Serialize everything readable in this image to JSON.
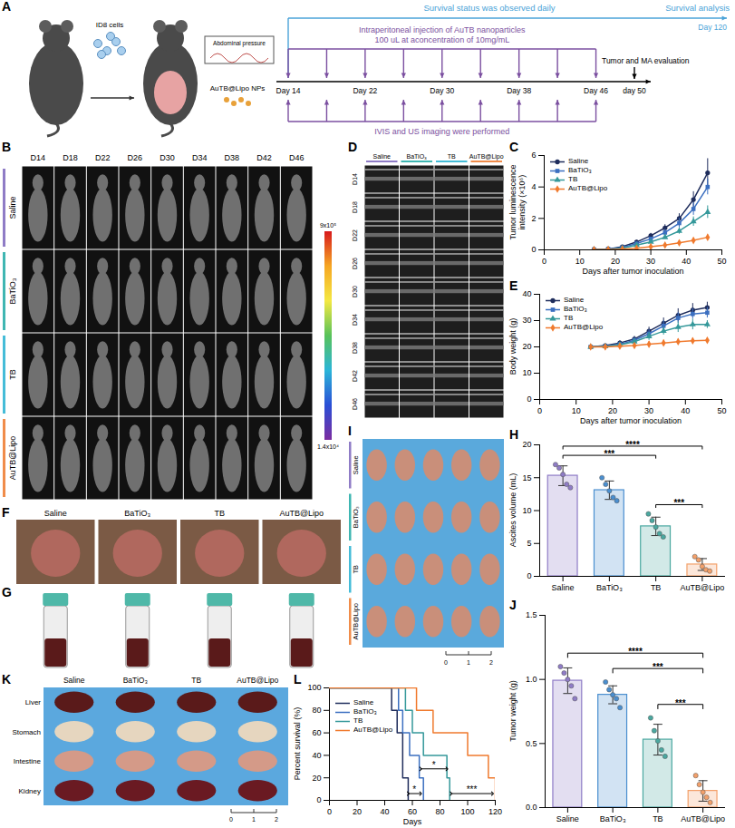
{
  "chart_data": [
    {
      "panel": "C",
      "type": "line",
      "y_label": "Tumor luminescence intensity (×10⁶)",
      "x_label": "Days after tumor inoculation",
      "x": [
        14,
        18,
        22,
        26,
        30,
        34,
        38,
        42,
        46
      ],
      "xlim": [
        0,
        50
      ],
      "xticks": [
        0,
        10,
        20,
        30,
        40,
        50
      ],
      "ylim": [
        0,
        6
      ],
      "yticks": [
        0,
        2,
        4,
        6
      ],
      "legend": "upper left",
      "series": [
        {
          "name": "Saline",
          "color": "#1f2d5c",
          "marker": "circle",
          "values": [
            0.02,
            0.05,
            0.2,
            0.5,
            0.9,
            1.4,
            2.0,
            3.2,
            4.9
          ],
          "errors": [
            0.01,
            0.02,
            0.05,
            0.1,
            0.15,
            0.2,
            0.3,
            0.5,
            0.9
          ]
        },
        {
          "name": "BaTiO₃",
          "color": "#3b6fc0",
          "marker": "square",
          "values": [
            0.02,
            0.05,
            0.15,
            0.4,
            0.7,
            1.1,
            1.7,
            2.6,
            4.0
          ],
          "errors": [
            0.01,
            0.02,
            0.05,
            0.08,
            0.1,
            0.2,
            0.3,
            0.4,
            0.5
          ]
        },
        {
          "name": "TB",
          "color": "#34989a",
          "marker": "triangle",
          "values": [
            0.01,
            0.03,
            0.1,
            0.3,
            0.5,
            0.8,
            1.2,
            1.8,
            2.4
          ],
          "errors": [
            0.01,
            0.01,
            0.03,
            0.05,
            0.1,
            0.1,
            0.2,
            0.3,
            0.4
          ]
        },
        {
          "name": "AuTB@Lipo",
          "color": "#f07a2e",
          "marker": "diamond",
          "values": [
            0.01,
            0.02,
            0.05,
            0.1,
            0.2,
            0.3,
            0.45,
            0.6,
            0.8
          ],
          "errors": [
            0.01,
            0.01,
            0.01,
            0.02,
            0.05,
            0.05,
            0.1,
            0.1,
            0.15
          ]
        }
      ]
    },
    {
      "panel": "E",
      "type": "line",
      "y_label": "Body weight (g)",
      "x_label": "Days after tumor inoculation",
      "x": [
        14,
        18,
        22,
        26,
        30,
        34,
        38,
        42,
        46
      ],
      "xlim": [
        0,
        50
      ],
      "xticks": [
        0,
        10,
        20,
        30,
        40,
        50
      ],
      "ylim": [
        0,
        40
      ],
      "yticks": [
        0,
        10,
        20,
        30,
        40
      ],
      "legend": "upper left",
      "series": [
        {
          "name": "Saline",
          "color": "#1f2d5c",
          "marker": "circle",
          "values": [
            20,
            20.5,
            21.5,
            23,
            26,
            29,
            32,
            34,
            35
          ],
          "errors": [
            0.5,
            0.5,
            0.8,
            1,
            1.5,
            2,
            2.5,
            2.5,
            2
          ]
        },
        {
          "name": "BaTiO₃",
          "color": "#3b6fc0",
          "marker": "square",
          "values": [
            20,
            20.3,
            21,
            22.5,
            25,
            28,
            31,
            32.5,
            33
          ],
          "errors": [
            0.5,
            0.5,
            0.8,
            1,
            1.5,
            2,
            2,
            2,
            2
          ]
        },
        {
          "name": "TB",
          "color": "#34989a",
          "marker": "triangle",
          "values": [
            20,
            20.2,
            20.8,
            22,
            24,
            26,
            27.5,
            28.5,
            28.5
          ],
          "errors": [
            0.5,
            0.5,
            0.8,
            1,
            1.5,
            1.5,
            2,
            2,
            1.5
          ]
        },
        {
          "name": "AuTB@Lipo",
          "color": "#f07a2e",
          "marker": "diamond",
          "values": [
            20,
            20,
            20.3,
            20.5,
            21,
            21.5,
            22,
            22.3,
            22.5
          ],
          "errors": [
            0.5,
            0.5,
            0.5,
            0.8,
            1,
            1,
            1,
            1,
            1
          ]
        }
      ]
    },
    {
      "panel": "H",
      "type": "bar",
      "y_label": "Ascites volume (mL)",
      "categories": [
        "Saline",
        "BaTiO₃",
        "TB",
        "AuTB@Lipo"
      ],
      "colors": [
        "#8f7cc6",
        "#4a8fd0",
        "#4aa8a0",
        "#f3a06a"
      ],
      "values": [
        15.3,
        13.1,
        7.6,
        1.8
      ],
      "errors": [
        1.5,
        1.4,
        1.4,
        0.9
      ],
      "points": [
        [
          17,
          16.5,
          15.5,
          14,
          13.5
        ],
        [
          15,
          14,
          13,
          12,
          11.5
        ],
        [
          9.5,
          8.5,
          7.5,
          6.5,
          6
        ],
        [
          3,
          2.5,
          1.5,
          1,
          0.8
        ]
      ],
      "ylim": [
        0,
        20
      ],
      "yticks": [
        0,
        5,
        10,
        15,
        20
      ],
      "significance": [
        {
          "from": "TB",
          "to": "AuTB@Lipo",
          "label": "***"
        },
        {
          "from": "Saline",
          "to": "TB",
          "label": "***"
        },
        {
          "from": "Saline",
          "to": "AuTB@Lipo",
          "label": "****"
        }
      ]
    },
    {
      "panel": "J",
      "type": "bar",
      "y_label": "Tumor weight (g)",
      "categories": [
        "Saline",
        "BaTiO₃",
        "TB",
        "AuTB@Lipo"
      ],
      "colors": [
        "#8f7cc6",
        "#4a8fd0",
        "#4aa8a0",
        "#f3a06a"
      ],
      "values": [
        0.99,
        0.88,
        0.53,
        0.13
      ],
      "errors": [
        0.1,
        0.07,
        0.12,
        0.08
      ],
      "points": [
        [
          1.1,
          1.05,
          1.0,
          0.95,
          0.85
        ],
        [
          0.98,
          0.92,
          0.88,
          0.85,
          0.78
        ],
        [
          0.7,
          0.6,
          0.52,
          0.45,
          0.4
        ],
        [
          0.25,
          0.18,
          0.12,
          0.08,
          0.04
        ]
      ],
      "ylim": [
        0,
        1.5
      ],
      "yticks": [
        {
          "value": 0,
          "label": "0.0"
        },
        0.5,
        {
          "value": 1,
          "label": "1.0"
        },
        1.5
      ],
      "significance": [
        {
          "from": "TB",
          "to": "AuTB@Lipo",
          "label": "***"
        },
        {
          "from": "BaTiO₃",
          "to": "AuTB@Lipo",
          "label": "***"
        },
        {
          "from": "Saline",
          "to": "AuTB@Lipo",
          "label": "****"
        }
      ]
    },
    {
      "panel": "L",
      "type": "line",
      "line_style": "step",
      "y_label": "Percent survival (%)",
      "x_label": "Days",
      "xlim": [
        0,
        120
      ],
      "xticks": [
        0,
        20,
        40,
        60,
        80,
        100,
        120
      ],
      "ylim": [
        0,
        100
      ],
      "yticks": [
        0,
        20,
        40,
        60,
        80,
        100
      ],
      "legend": "upper left",
      "series": [
        {
          "name": "Saline",
          "color": "#1f2d5c",
          "x": [
            0,
            45,
            49,
            53,
            57
          ],
          "values": [
            100,
            80,
            60,
            20,
            0
          ]
        },
        {
          "name": "BaTiO₃",
          "color": "#3b6fc0",
          "x": [
            0,
            50,
            53,
            58,
            65,
            68
          ],
          "values": [
            100,
            80,
            60,
            40,
            20,
            0
          ]
        },
        {
          "name": "TB",
          "color": "#34989a",
          "x": [
            0,
            55,
            60,
            68,
            85,
            87
          ],
          "values": [
            100,
            80,
            60,
            40,
            20,
            0
          ]
        },
        {
          "name": "AuTB@Lipo",
          "color": "#f07a2e",
          "x": [
            0,
            63,
            75,
            100,
            115,
            120
          ],
          "values": [
            100,
            80,
            60,
            40,
            20,
            0
          ]
        }
      ],
      "annotations": [
        {
          "label": "*",
          "x1": 57,
          "x2": 66,
          "y": 6
        },
        {
          "label": "*",
          "x1": 66,
          "x2": 85,
          "y": 28
        },
        {
          "label": "***",
          "x1": 88,
          "x2": 118,
          "y": 6
        }
      ]
    }
  ],
  "figure": {
    "groups": [
      {
        "name": "Saline",
        "color": "#8f7cc6"
      },
      {
        "name": "BaTiO₃",
        "color": "#3fb6b2"
      },
      {
        "name": "TB",
        "color": "#45bcd8"
      },
      {
        "name": "AuTB@Lipo",
        "color": "#f08c4a"
      }
    ],
    "A": {
      "panel": "A",
      "cells_label": "ID8 cells",
      "pressure_label": "Abdominal pressure",
      "np_label": "AuTB@Lipo NPs",
      "survival_text": "Survival status was observed daily",
      "survival_end": "Survival analysis",
      "end_day": "Day 120",
      "injection_text": [
        "Intraperitoneal injection of AuTB nanoparticles",
        "100 uL at aconcentration of 10mg/mL"
      ],
      "evaluation_text": "Tumor and MA evaluation",
      "imaging_text": "IVIS and US imaging were performed",
      "injection_days": [
        14,
        18,
        22,
        26,
        30,
        34,
        38,
        42,
        46
      ],
      "day_labels": [
        {
          "value": 14,
          "label": "Day 14"
        },
        {
          "value": 22,
          "label": "Day 22"
        },
        {
          "value": 30,
          "label": "Day 30"
        },
        {
          "value": 38,
          "label": "Day 38"
        },
        {
          "value": 46,
          "label": "Day 46"
        },
        {
          "value": 50,
          "label": "day 50"
        }
      ]
    },
    "B": {
      "panel": "B",
      "days": [
        "D14",
        "D18",
        "D22",
        "D26",
        "D30",
        "D34",
        "D38",
        "D42",
        "D46"
      ],
      "colorbar": {
        "max": {
          "value": 900000,
          "label": "9x10⁵"
        },
        "min": {
          "value": 14000,
          "label": "1.4x10⁴"
        }
      }
    },
    "D": {
      "panel": "D",
      "days": [
        "D14",
        "D18",
        "D22",
        "D26",
        "D30",
        "D34",
        "D38",
        "D42",
        "D46"
      ]
    },
    "F": {
      "panel": "F"
    },
    "G": {
      "panel": "G"
    },
    "I": {
      "panel": "I",
      "scale": [
        0,
        1,
        2
      ]
    },
    "K": {
      "panel": "K",
      "organs": [
        "Liver",
        "Stomach",
        "Intestine",
        "Kidney"
      ],
      "scale": [
        0,
        1,
        2
      ]
    }
  }
}
